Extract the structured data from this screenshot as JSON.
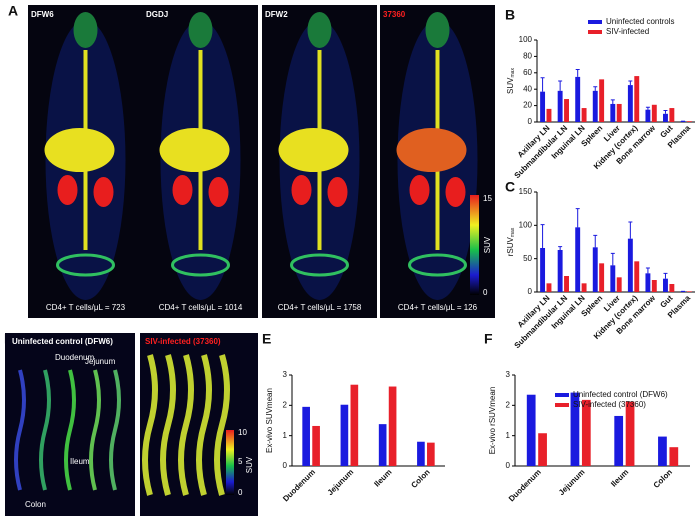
{
  "panel_labels": [
    "A",
    "B",
    "C",
    "D",
    "E",
    "F"
  ],
  "scans": [
    {
      "name": "DFW6",
      "caption": "CD4+ T cells/μL = 723"
    },
    {
      "name": "DGDJ",
      "caption": "CD4+ T cells/μL = 1014"
    },
    {
      "name": "DFW2",
      "caption": "CD4+ T cells/μL = 1758"
    },
    {
      "name": "37360",
      "caption": "CD4+ T cells/μL = 126"
    }
  ],
  "scan_colorbar": {
    "max": 15,
    "min": 0,
    "label": "SUV"
  },
  "gut_images": {
    "control_title": "Uninfected control (DFW6)",
    "infected_title": "SIV-infected (37360)",
    "segments": [
      "Duodenum",
      "Jejunum",
      "Ileum",
      "Colon"
    ],
    "colorbar": {
      "max": 10,
      "mid": 5,
      "min": 0,
      "label": "SUV"
    }
  },
  "chart_data": [
    {
      "type": "bar",
      "ylabel": "SUV",
      "ylabel_sub": "max",
      "legend": true,
      "categories": [
        "Axillary LN",
        "Submandibular LN",
        "Inguinal LN",
        "Spleen",
        "Liver",
        "Kidney (cortex)",
        "Bone marrow",
        "Gut",
        "Plasma"
      ],
      "series": [
        {
          "name": "Uninfected controls",
          "color": "#1a1adf",
          "values": [
            37,
            38,
            55,
            38,
            22,
            45,
            15,
            10,
            1
          ],
          "errors": [
            17,
            12,
            9,
            5,
            5,
            5,
            3,
            4,
            0
          ]
        },
        {
          "name": "SIV-infected",
          "color": "#e8202a",
          "values": [
            16,
            28,
            17,
            52,
            22,
            56,
            21,
            17,
            1
          ]
        }
      ],
      "ylim": [
        0,
        100
      ],
      "yticks": [
        0,
        20,
        40,
        60,
        80,
        100
      ]
    },
    {
      "type": "bar",
      "ylabel": "rSUV",
      "ylabel_sub": "max",
      "legend": false,
      "categories": [
        "Axillary LN",
        "Submandibular LN",
        "Inguinal LN",
        "Spleen",
        "Liver",
        "Kidney (cortex)",
        "Bone marrow",
        "Gut",
        "Plasma"
      ],
      "series": [
        {
          "name": "Uninfected controls",
          "color": "#1a1adf",
          "values": [
            66,
            63,
            97,
            67,
            40,
            80,
            28,
            20,
            1
          ],
          "errors": [
            35,
            5,
            28,
            18,
            18,
            25,
            8,
            8,
            0
          ]
        },
        {
          "name": "SIV-infected",
          "color": "#e8202a",
          "values": [
            13,
            24,
            13,
            43,
            22,
            46,
            18,
            12,
            1
          ]
        }
      ],
      "ylim": [
        0,
        150
      ],
      "yticks": [
        0,
        50,
        100,
        150
      ]
    },
    {
      "type": "bar",
      "ylabel": "Ex-vivo SUVmean",
      "legend": false,
      "categories": [
        "Duodenum",
        "Jejunum",
        "Ileum",
        "Colon"
      ],
      "series": [
        {
          "name": "Uninfected control (DFW6)",
          "color": "#1a1adf",
          "values": [
            1.95,
            2.02,
            1.38,
            0.8
          ]
        },
        {
          "name": "SIV-infected (37360)",
          "color": "#e8202a",
          "values": [
            1.32,
            2.68,
            2.62,
            0.77
          ]
        }
      ],
      "ylim": [
        0,
        3
      ],
      "yticks": [
        0,
        1,
        2,
        3
      ]
    },
    {
      "type": "bar",
      "ylabel": "Ex-vivo rSUVmean",
      "legend": true,
      "categories": [
        "Duodenum",
        "Jejunum",
        "Ileum",
        "Colon"
      ],
      "series": [
        {
          "name": "Uninfected control (DFW6)",
          "color": "#1a1adf",
          "values": [
            2.35,
            2.42,
            1.65,
            0.97
          ]
        },
        {
          "name": "SIV-infected (37360)",
          "color": "#e8202a",
          "values": [
            1.08,
            2.18,
            2.12,
            0.62
          ]
        }
      ],
      "ylim": [
        0,
        3
      ],
      "yticks": [
        0,
        1,
        2,
        3
      ]
    }
  ]
}
